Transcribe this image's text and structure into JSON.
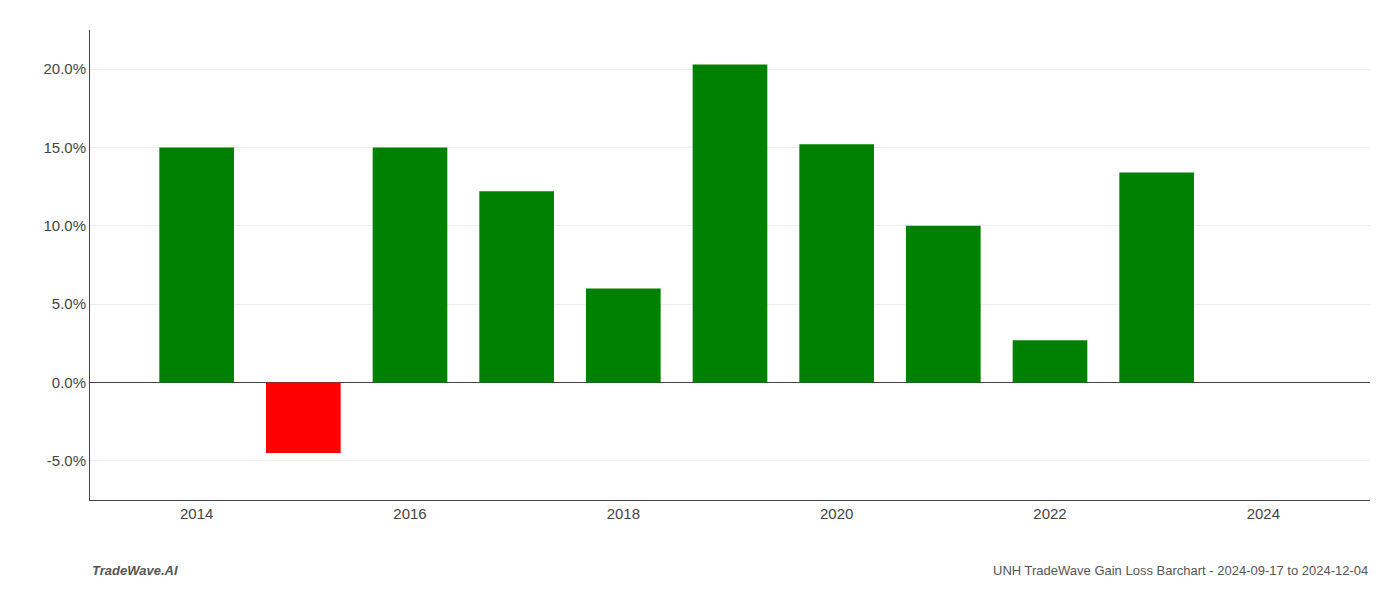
{
  "chart_data": {
    "type": "bar",
    "x": [
      2014,
      2015,
      2016,
      2017,
      2018,
      2019,
      2020,
      2021,
      2022,
      2023
    ],
    "values": [
      0.15,
      -0.045,
      0.15,
      0.122,
      0.06,
      0.203,
      0.152,
      0.1,
      0.027,
      0.134
    ],
    "colors": [
      "#008000",
      "#ff0000",
      "#008000",
      "#008000",
      "#008000",
      "#008000",
      "#008000",
      "#008000",
      "#008000",
      "#008000"
    ],
    "xlim": [
      2013,
      2025
    ],
    "xticks": [
      2014,
      2016,
      2018,
      2020,
      2022,
      2024
    ],
    "ylim": [
      -0.075,
      0.225
    ],
    "yticks": [
      {
        "value": -0.05,
        "label": "-5.0%"
      },
      {
        "value": 0.0,
        "label": "0.0%"
      },
      {
        "value": 0.05,
        "label": "5.0%"
      },
      {
        "value": 0.1,
        "label": "10.0%"
      },
      {
        "value": 0.15,
        "label": "15.0%"
      },
      {
        "value": 0.2,
        "label": "20.0%"
      }
    ],
    "grid": true,
    "annotations": [
      "TradeWave.AI",
      "UNH TradeWave Gain Loss Barchart - 2024-09-17 to 2024-12-04"
    ]
  }
}
